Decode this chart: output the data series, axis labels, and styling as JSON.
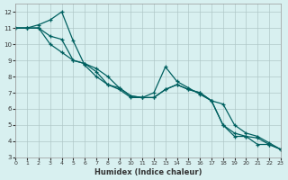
{
  "xlabel": "Humidex (Indice chaleur)",
  "ylabel": "",
  "xlim": [
    0,
    23
  ],
  "ylim": [
    3,
    12.5
  ],
  "xticks": [
    0,
    1,
    2,
    3,
    4,
    5,
    6,
    7,
    8,
    9,
    10,
    11,
    12,
    13,
    14,
    15,
    16,
    17,
    18,
    19,
    20,
    21,
    22,
    23
  ],
  "yticks": [
    3,
    4,
    5,
    6,
    7,
    8,
    9,
    10,
    11,
    12
  ],
  "bg_color": "#d8f0f0",
  "grid_color": "#b0c8c8",
  "line_color": "#006060",
  "line1_x": [
    0,
    1,
    2,
    3,
    4,
    5,
    6,
    7,
    8,
    9,
    10,
    11,
    12,
    13,
    14,
    15,
    16,
    17,
    18,
    19,
    20,
    21,
    22,
    23
  ],
  "line1_y": [
    11,
    11,
    11.2,
    11.5,
    12.0,
    10.2,
    8.7,
    8.0,
    7.5,
    7.2,
    6.7,
    6.7,
    7.0,
    8.6,
    7.7,
    7.3,
    6.9,
    6.5,
    5.0,
    4.3,
    4.3,
    3.8,
    3.8,
    3.5
  ],
  "line2_x": [
    0,
    1,
    2,
    3,
    4,
    5,
    6,
    7,
    8,
    9,
    10,
    11,
    12,
    13,
    14,
    15,
    16,
    17,
    18,
    19,
    20,
    21,
    22,
    23
  ],
  "line2_y": [
    11,
    11,
    11,
    10.5,
    10.3,
    9.0,
    8.8,
    8.5,
    8.0,
    7.3,
    6.8,
    6.7,
    6.7,
    7.2,
    7.5,
    7.2,
    7.0,
    6.5,
    5.0,
    4.5,
    4.3,
    4.2,
    3.8,
    3.5
  ],
  "line3_x": [
    0,
    1,
    2,
    3,
    4,
    5,
    6,
    7,
    8,
    9,
    10,
    11,
    12,
    13,
    14,
    15,
    16,
    17,
    18,
    19,
    20,
    21,
    22,
    23
  ],
  "line3_y": [
    11,
    11,
    11,
    10.0,
    9.5,
    9.0,
    8.8,
    8.3,
    7.5,
    7.3,
    6.8,
    6.7,
    6.7,
    7.2,
    7.5,
    7.2,
    7.0,
    6.5,
    6.3,
    5.0,
    4.5,
    4.3,
    3.9,
    3.5
  ]
}
